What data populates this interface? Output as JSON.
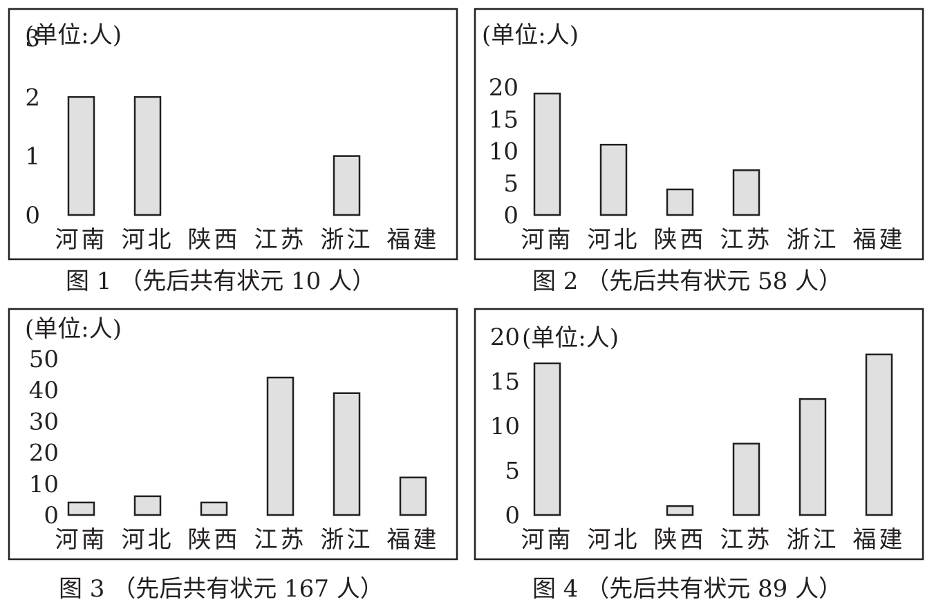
{
  "chart_data": [
    {
      "type": "bar",
      "unit_label": "(单位:人)",
      "categories": [
        "河南",
        "河北",
        "陕西",
        "江苏",
        "浙江",
        "福建"
      ],
      "values": [
        2,
        2,
        0,
        0,
        1,
        0
      ],
      "yticks": [
        "0",
        "1",
        "2",
        "3"
      ],
      "ylim": [
        0,
        3
      ],
      "caption": "图 1 （先后共有状元 10 人）"
    },
    {
      "type": "bar",
      "unit_label": "(单位:人)",
      "categories": [
        "河南",
        "河北",
        "陕西",
        "江苏",
        "浙江",
        "福建"
      ],
      "values": [
        19,
        11,
        4,
        7,
        0,
        0
      ],
      "yticks": [
        "0",
        "5",
        "10",
        "15",
        "20"
      ],
      "ylim": [
        0,
        20
      ],
      "caption": "图 2 （先后共有状元 58 人）"
    },
    {
      "type": "bar",
      "unit_label": "(单位:人)",
      "categories": [
        "河南",
        "河北",
        "陕西",
        "江苏",
        "浙江",
        "福建"
      ],
      "values": [
        4,
        6,
        4,
        44,
        39,
        12
      ],
      "yticks": [
        "0",
        "10",
        "20",
        "30",
        "40",
        "50"
      ],
      "ylim": [
        0,
        50
      ],
      "caption": "图 3 （先后共有状元 167 人）"
    },
    {
      "type": "bar",
      "unit_label": "(单位:人)",
      "categories": [
        "河南",
        "河北",
        "陕西",
        "江苏",
        "浙江",
        "福建"
      ],
      "values": [
        17,
        0,
        1,
        8,
        13,
        18
      ],
      "yticks": [
        "0",
        "5",
        "10",
        "15",
        "20"
      ],
      "ylim": [
        0,
        20
      ],
      "caption": "图 4 （先后共有状元 89 人）"
    }
  ]
}
